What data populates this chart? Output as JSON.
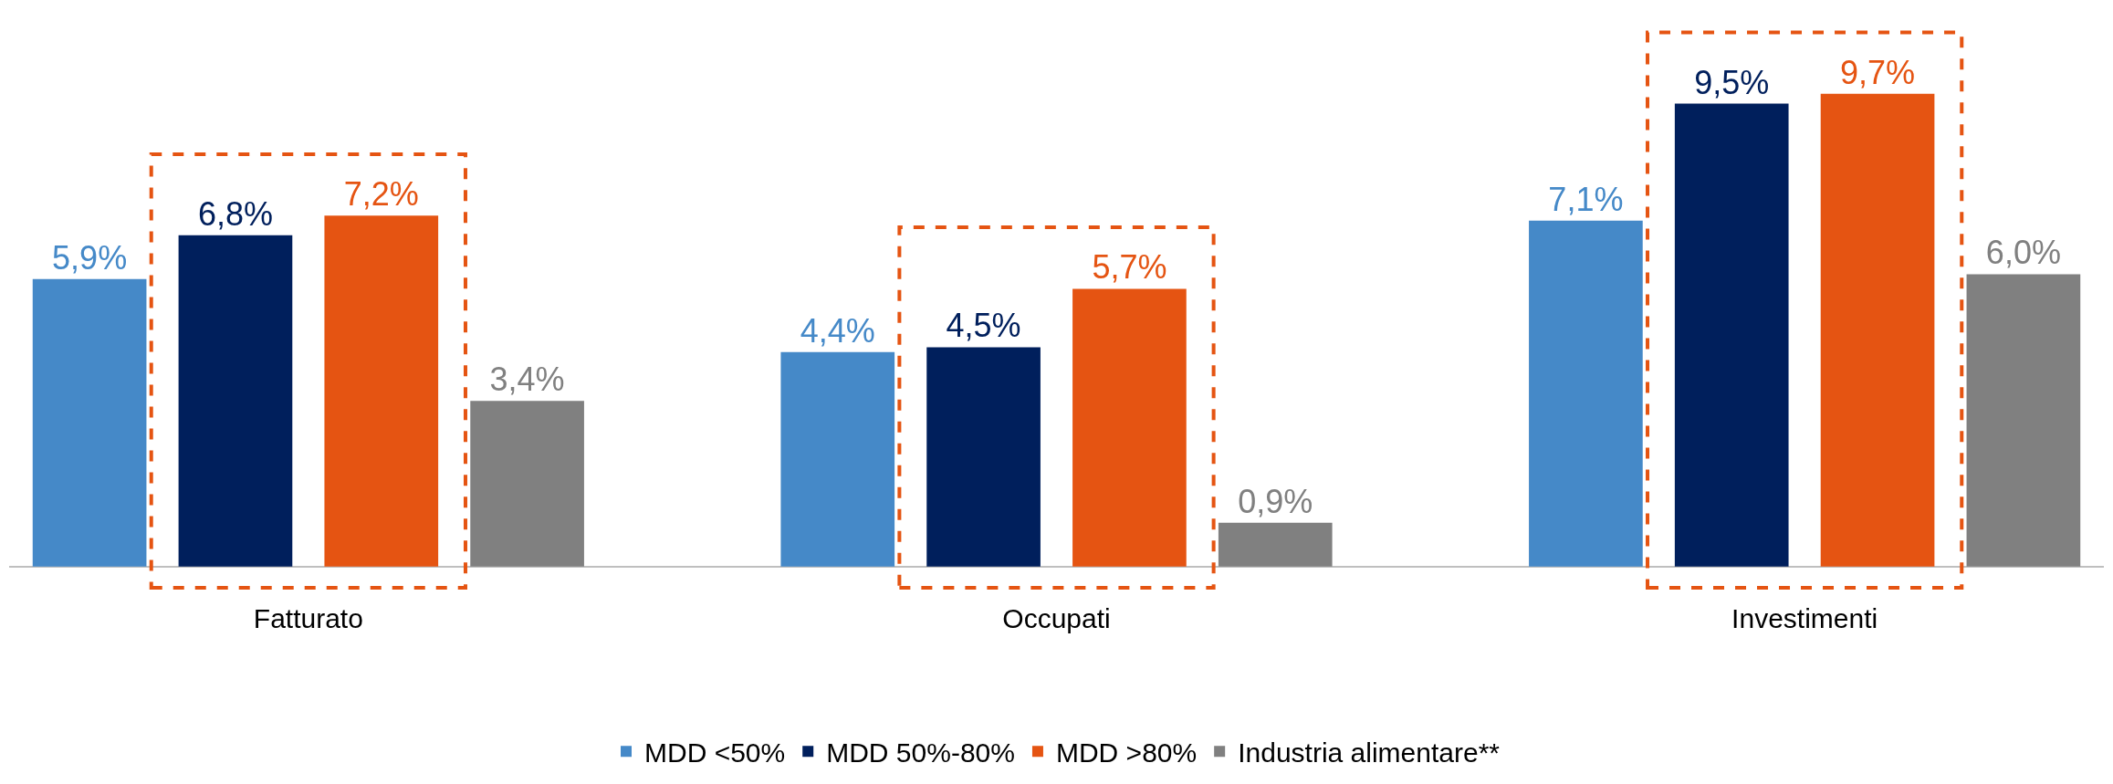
{
  "chart_data": {
    "type": "bar",
    "categories": [
      "Fatturato",
      "Occupati",
      "Investimenti"
    ],
    "series": [
      {
        "name": "MDD <50%",
        "color": "#4589c8",
        "values": [
          5.9,
          4.4,
          7.1
        ],
        "value_labels": [
          "5,9%",
          "4,4%",
          "7,1%"
        ]
      },
      {
        "name": "MDD 50%-80%",
        "color": "#001f5c",
        "values": [
          6.8,
          4.5,
          9.5
        ],
        "value_labels": [
          "6,8%",
          "4,5%",
          "9,5%"
        ]
      },
      {
        "name": "MDD >80%",
        "color": "#e55412",
        "values": [
          7.2,
          5.7,
          9.7
        ],
        "value_labels": [
          "7,2%",
          "5,7%",
          "9,7%"
        ]
      },
      {
        "name": "Industria alimentare**",
        "color": "#808080",
        "values": [
          3.4,
          0.9,
          6.0
        ],
        "value_labels": [
          "3,4%",
          "0,9%",
          "6,0%"
        ]
      }
    ],
    "legend": "bottom"
  }
}
